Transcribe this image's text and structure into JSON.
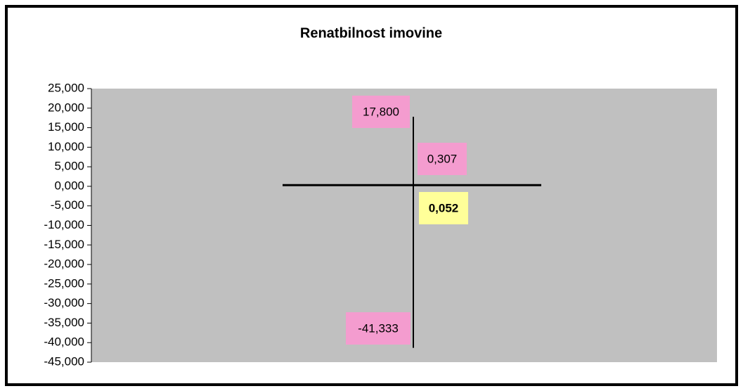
{
  "chart_data": {
    "type": "stock",
    "title": "Renatbilnost imovine",
    "values": [
      17.8,
      -41.333,
      0.307,
      0.052
    ],
    "value_labels": [
      "17,800",
      "-41,333",
      "0,307",
      "0,052"
    ],
    "ylim": [
      -45,
      25
    ],
    "yticks": [
      {
        "value": 25,
        "label": "25,000"
      },
      {
        "value": 20,
        "label": "20,000"
      },
      {
        "value": 15,
        "label": "15,000"
      },
      {
        "value": 10,
        "label": "10,000"
      },
      {
        "value": 5,
        "label": "5,000"
      },
      {
        "value": 0,
        "label": "0,000"
      },
      {
        "value": -5,
        "label": "-5,000"
      },
      {
        "value": -10,
        "label": "-10,000"
      },
      {
        "value": -15,
        "label": "-15,000"
      },
      {
        "value": -20,
        "label": "-20,000"
      },
      {
        "value": -25,
        "label": "-25,000"
      },
      {
        "value": -30,
        "label": "-30,000"
      },
      {
        "value": -35,
        "label": "-35,000"
      },
      {
        "value": -40,
        "label": "-40,000"
      },
      {
        "value": -45,
        "label": "-45,000"
      }
    ],
    "plot_color": "#c0c0c0",
    "label_color": "#f49ccf",
    "highlight_color": "#ffff99"
  }
}
